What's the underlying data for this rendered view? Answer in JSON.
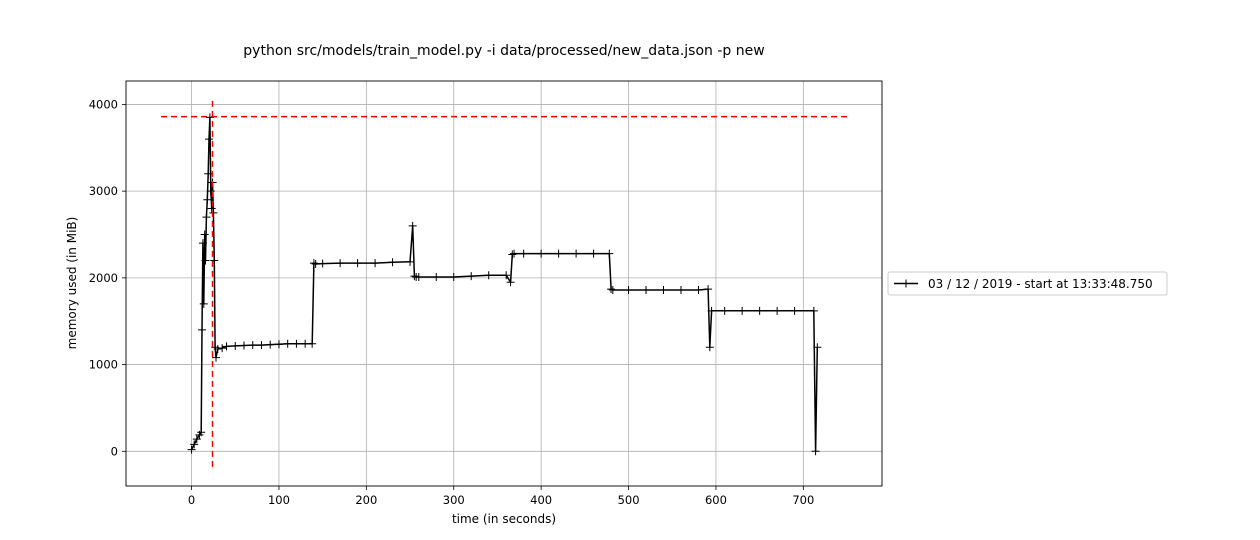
{
  "chart_data": {
    "type": "line",
    "title": "python src/models/train_model.py -i data/processed/new_data.json -p new",
    "xlabel": "time (in seconds)",
    "ylabel": "memory used (in MiB)",
    "xlim": [
      -75,
      790
    ],
    "ylim": [
      -400,
      4270
    ],
    "xticks": [
      0,
      100,
      200,
      300,
      400,
      500,
      600,
      700
    ],
    "yticks": [
      0,
      1000,
      2000,
      3000,
      4000
    ],
    "grid": true,
    "legend": {
      "placement": "right-outside",
      "entries": [
        "03 / 12 / 2019 - start at 13:33:48.750"
      ]
    },
    "series": [
      {
        "name": "03 / 12 / 2019 - start at 13:33:48.750",
        "color": "#000000",
        "marker": "+",
        "x": [
          0,
          3,
          6,
          9,
          11,
          12,
          13,
          14,
          15,
          16,
          17,
          18,
          19,
          20,
          21,
          22,
          23,
          24,
          25,
          26,
          27,
          28,
          30,
          35,
          40,
          50,
          60,
          70,
          80,
          90,
          100,
          110,
          120,
          130,
          138,
          140,
          142,
          150,
          170,
          190,
          210,
          230,
          250,
          253,
          255,
          257,
          260,
          280,
          300,
          320,
          340,
          360,
          365,
          367,
          369,
          380,
          400,
          420,
          440,
          460,
          478,
          480,
          482,
          500,
          520,
          540,
          560,
          580,
          591,
          593,
          595,
          610,
          630,
          650,
          670,
          690,
          712,
          714,
          716
        ],
        "y": [
          20,
          80,
          140,
          190,
          220,
          1400,
          2400,
          1700,
          2500,
          2200,
          2700,
          2900,
          3200,
          3600,
          3850,
          3000,
          2800,
          3100,
          2750,
          2200,
          1200,
          1080,
          1180,
          1190,
          1210,
          1215,
          1220,
          1225,
          1225,
          1230,
          1235,
          1240,
          1240,
          1240,
          1240,
          2170,
          2160,
          2165,
          2170,
          2170,
          2170,
          2180,
          2185,
          2600,
          2020,
          2010,
          2010,
          2010,
          2010,
          2020,
          2030,
          2030,
          1950,
          2270,
          2280,
          2280,
          2280,
          2280,
          2280,
          2280,
          2280,
          1870,
          1860,
          1860,
          1860,
          1860,
          1860,
          1860,
          1870,
          1200,
          1620,
          1620,
          1620,
          1620,
          1620,
          1620,
          1620,
          0,
          1200
        ]
      },
      {
        "name": "",
        "color": "#ff0000",
        "style": "dashed",
        "x": [
          -35,
          750
        ],
        "y": [
          3860,
          3860
        ]
      },
      {
        "name": "",
        "color": "#ff0000",
        "style": "dashed",
        "x": [
          24,
          24
        ],
        "y": [
          -180,
          4050
        ]
      }
    ]
  }
}
